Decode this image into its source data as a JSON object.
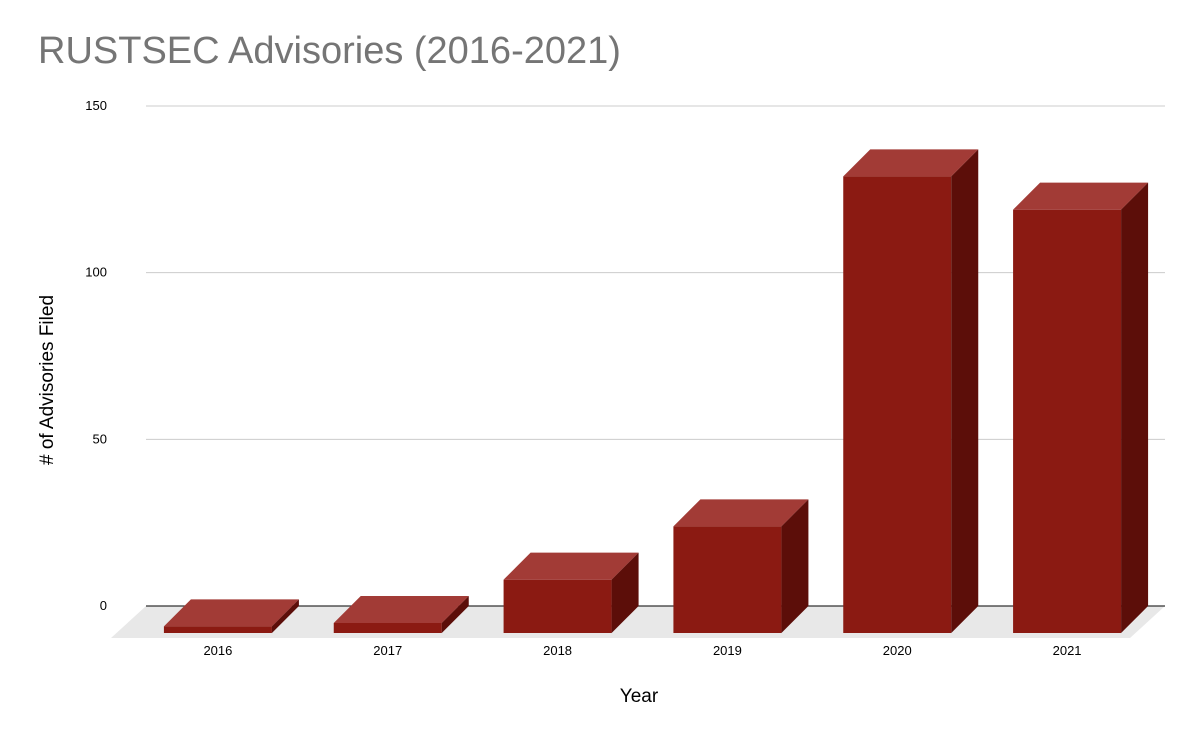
{
  "chart_data": {
    "type": "bar",
    "title": "RUSTSEC Advisories (2016-2021)",
    "xlabel": "Year",
    "ylabel": "# of Advisories Filed",
    "categories": [
      "2016",
      "2017",
      "2018",
      "2019",
      "2020",
      "2021"
    ],
    "values": [
      2,
      3,
      16,
      32,
      137,
      127
    ],
    "ylim": [
      0,
      150
    ],
    "yticks": [
      "0",
      "50",
      "100",
      "150"
    ],
    "grid": true,
    "legend": "none",
    "style": "3d",
    "colors": {
      "front": "#8b1a12",
      "top": "#a23b36",
      "side": "#5c0e09",
      "floor": "#e8e8e8",
      "grid": "#cccccc",
      "axis": "#333333"
    }
  }
}
